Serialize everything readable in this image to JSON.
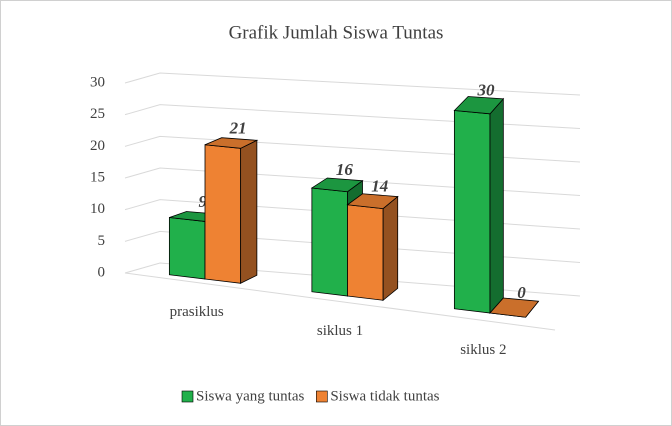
{
  "chart_data": {
    "type": "bar3d",
    "title": "Grafik Jumlah Siswa Tuntas",
    "categories": [
      "prasiklus",
      "siklus 1",
      "siklus 2"
    ],
    "series": [
      {
        "name": "Siswa yang tuntas",
        "color": "#21b04b",
        "values": [
          9,
          16,
          30
        ]
      },
      {
        "name": "Siswa tidak tuntas",
        "color": "#ee8233",
        "values": [
          21,
          14,
          0
        ]
      }
    ],
    "ylim": [
      0,
      30
    ],
    "yticks": [
      0,
      5,
      10,
      15,
      20,
      25,
      30
    ],
    "grid": true,
    "legend": "bottom"
  }
}
